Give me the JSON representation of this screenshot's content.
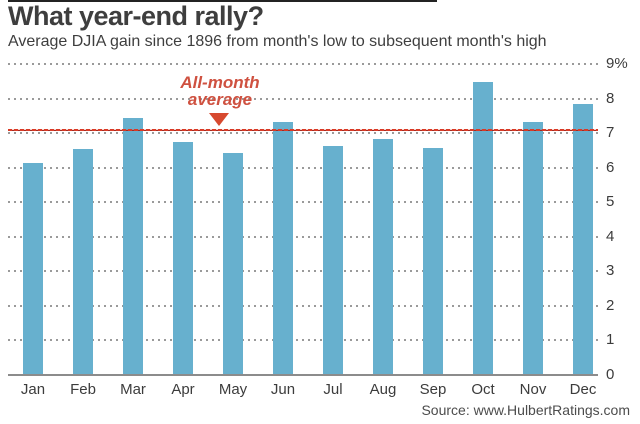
{
  "header": {
    "title": "What year-end rally?",
    "subtitle": "Average DJIA gain since 1896 from month's low to subsequent month's high"
  },
  "chart_data": {
    "type": "bar",
    "title": "What year-end rally?",
    "subtitle": "Average DJIA gain since 1896 from month's low to subsequent month's high",
    "categories": [
      "Jan",
      "Feb",
      "Mar",
      "Apr",
      "May",
      "Jun",
      "Jul",
      "Aug",
      "Sep",
      "Oct",
      "Nov",
      "Dec"
    ],
    "values": [
      6.1,
      6.5,
      7.4,
      6.7,
      6.4,
      7.3,
      6.6,
      6.8,
      6.55,
      8.45,
      7.3,
      7.8
    ],
    "unit": "%",
    "xlabel": "",
    "ylabel": "",
    "ylim": [
      0,
      9
    ],
    "yticks": [
      "0",
      "1",
      "2",
      "3",
      "4",
      "5",
      "6",
      "7",
      "8",
      "9%"
    ],
    "grid": "horizontal-dotted",
    "axis_side": "right",
    "legend": "none",
    "bar_color": "#67b0ce",
    "average_line": {
      "value": 7.1,
      "label_line1": "All-month",
      "label_line2": "average",
      "line_color": "#d93a26",
      "label_color": "#cf5140"
    }
  },
  "footer": {
    "source": "Source: www.HulbertRatings.com"
  }
}
